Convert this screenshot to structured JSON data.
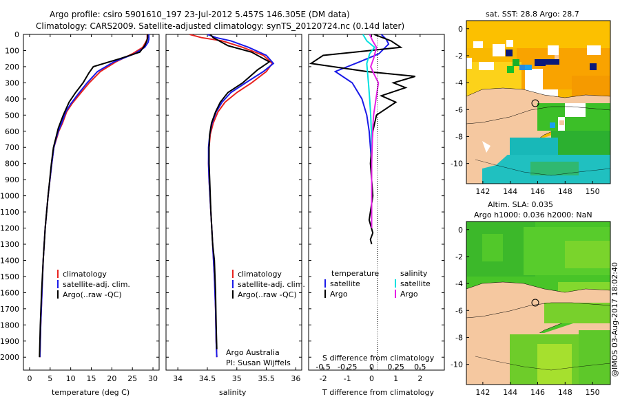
{
  "title": {
    "line1": "Argo profile: csiro 5901610_197 23-Jul-2012 5.457S 146.305E (DM data)",
    "line2": "Climatology: CARS2009. Satellite-adjusted climatology: synTS_20120724.nc (0.14d later)"
  },
  "credit": "@IMOS 03-Aug-2017 18:02:40",
  "legend_profile": [
    "climatology",
    "satellite-adj. clim.",
    "Argo(..raw -QC)"
  ],
  "legend_diff": {
    "temperature_head": "temperature",
    "salinity_head": "salinity",
    "items_t": [
      "satellite",
      "Argo"
    ],
    "items_s": [
      "satellite",
      "Argo"
    ]
  },
  "annotation_salinity": [
    "Argo Australia",
    "PI: Susan Wijffels"
  ],
  "map_top": {
    "title": "sat. SST: 28.8 Argo: 28.7"
  },
  "map_bottom": {
    "title1": "Altim. SLA: 0.035",
    "title2": "Argo h1000: 0.036 h2000: NaN"
  },
  "colors": {
    "climatology": "#e8231f",
    "satellite": "#1a1ae8",
    "argo": "#000000",
    "sat_salinity": "#00e0e0",
    "argo_salinity": "#e61ee6",
    "land": "#f5c8a0"
  },
  "chart_data": [
    {
      "type": "line",
      "name": "temperature",
      "xlabel": "temperature (deg C)",
      "xticks": [
        0,
        5,
        10,
        15,
        20,
        25,
        30
      ],
      "xlim": [
        -1.5,
        31.5
      ],
      "ylim": [
        0,
        2080
      ],
      "yticks": [
        0,
        100,
        200,
        300,
        400,
        500,
        600,
        700,
        800,
        900,
        1000,
        1100,
        1200,
        1300,
        1400,
        1500,
        1600,
        1700,
        1800,
        1900,
        2000
      ],
      "series": [
        {
          "name": "climatology",
          "color": "#e8231f",
          "x": [
            28.6,
            28.6,
            28.2,
            27.5,
            25.0,
            21.0,
            17.2,
            14.5,
            12.2,
            10.3,
            9.0,
            8.0,
            7.1,
            6.5,
            5.9,
            5.4,
            4.5,
            3.8,
            3.3,
            3.0,
            2.7,
            2.5
          ],
          "y": [
            0,
            30,
            50,
            80,
            120,
            170,
            230,
            300,
            370,
            430,
            480,
            550,
            600,
            650,
            700,
            800,
            1000,
            1200,
            1400,
            1600,
            1800,
            2000
          ]
        },
        {
          "name": "satellite-adj. clim.",
          "color": "#1a1ae8",
          "x": [
            29.0,
            29.0,
            28.8,
            28.0,
            25.5,
            20.5,
            16.5,
            14.0,
            11.8,
            10.0,
            8.8,
            7.8,
            7.0,
            6.4,
            5.9,
            5.4,
            4.5,
            3.8,
            3.3,
            3.0,
            2.7,
            2.5
          ],
          "y": [
            0,
            30,
            50,
            80,
            120,
            170,
            230,
            300,
            370,
            430,
            480,
            550,
            600,
            650,
            700,
            800,
            1000,
            1200,
            1400,
            1600,
            1800,
            2000
          ]
        },
        {
          "name": "Argo(..raw -QC)",
          "color": "#000000",
          "x": [
            28.7,
            28.7,
            28.5,
            28.0,
            26.8,
            22.0,
            15.5,
            14.4,
            13.0,
            11.2,
            9.6,
            8.2,
            7.0,
            6.3,
            5.8,
            5.3,
            4.5,
            3.8,
            3.3,
            2.9,
            2.6,
            2.4
          ],
          "y": [
            0,
            20,
            40,
            70,
            110,
            150,
            200,
            240,
            300,
            360,
            420,
            500,
            580,
            650,
            700,
            800,
            1000,
            1200,
            1400,
            1600,
            1800,
            2000
          ]
        }
      ]
    },
    {
      "type": "line",
      "name": "salinity",
      "xlabel": "salinity",
      "xticks": [
        34,
        34.5,
        35,
        35.5,
        36
      ],
      "xlim": [
        33.8,
        36.1
      ],
      "ylim": [
        0,
        2080
      ],
      "series": [
        {
          "name": "climatology",
          "color": "#e8231f",
          "x": [
            34.2,
            34.4,
            34.75,
            35.1,
            35.45,
            35.6,
            35.5,
            35.25,
            35.0,
            34.8,
            34.68,
            34.6,
            34.55,
            34.53,
            34.52,
            34.53,
            34.56,
            34.59,
            34.62,
            34.64,
            34.65,
            34.66
          ],
          "y": [
            0,
            20,
            40,
            80,
            130,
            180,
            230,
            300,
            360,
            420,
            480,
            550,
            620,
            700,
            800,
            900,
            1100,
            1300,
            1500,
            1700,
            1900,
            2000
          ]
        },
        {
          "name": "satellite-adj. clim.",
          "color": "#1a1ae8",
          "x": [
            34.5,
            34.65,
            34.9,
            35.2,
            35.5,
            35.62,
            35.45,
            35.15,
            34.9,
            34.75,
            34.65,
            34.58,
            34.54,
            34.52,
            34.52,
            34.53,
            34.56,
            34.59,
            34.62,
            34.64,
            34.65,
            34.66
          ],
          "y": [
            0,
            20,
            40,
            80,
            130,
            180,
            230,
            300,
            360,
            420,
            480,
            550,
            620,
            700,
            800,
            900,
            1100,
            1300,
            1500,
            1700,
            1900,
            2000
          ]
        },
        {
          "name": "Argo(..raw -QC)",
          "color": "#000000",
          "x": [
            34.55,
            34.6,
            34.7,
            34.85,
            35.25,
            35.55,
            35.35,
            35.1,
            34.85,
            34.72,
            34.64,
            34.57,
            34.54,
            34.53,
            34.53,
            34.54,
            34.56,
            34.59,
            34.62,
            34.64,
            34.65,
            34.66
          ],
          "y": [
            0,
            20,
            40,
            70,
            110,
            170,
            220,
            300,
            360,
            420,
            480,
            550,
            620,
            700,
            800,
            900,
            1100,
            1300,
            1400,
            1600,
            1800,
            1950
          ]
        }
      ]
    },
    {
      "type": "line",
      "name": "difference",
      "xlabel": "T difference from climatology",
      "xlabel_top": "S difference from climatology",
      "xticks": [
        -2,
        -1,
        0,
        1,
        2
      ],
      "xticks_top": [
        -0.5,
        -0.25,
        0,
        0.25,
        0.5
      ],
      "xlim": [
        -2.6,
        3.0
      ],
      "ylim": [
        0,
        2080
      ],
      "series": [
        {
          "name": "temperature satellite",
          "color": "#1a1ae8",
          "x": [
            0.4,
            0.6,
            0.7,
            0.3,
            -0.5,
            -1.5,
            -0.8,
            -0.4,
            -0.2,
            -0.1,
            -0.05,
            0,
            0,
            0,
            0,
            0
          ],
          "y": [
            0,
            30,
            60,
            120,
            170,
            230,
            300,
            400,
            500,
            600,
            700,
            800,
            900,
            1000,
            1100,
            1200
          ]
        },
        {
          "name": "temperature Argo",
          "color": "#000000",
          "x": [
            0.1,
            0.8,
            1.2,
            -2.0,
            -2.5,
            -0.2,
            1.8,
            0.9,
            1.4,
            0.4,
            1.0,
            0.2,
            0.05,
            -0.05,
            0.05,
            -0.1,
            0.05,
            -0.05,
            0
          ],
          "y": [
            0,
            40,
            80,
            130,
            180,
            230,
            260,
            300,
            330,
            380,
            420,
            500,
            600,
            800,
            1000,
            1150,
            1230,
            1270,
            1300
          ]
        },
        {
          "name": "salinity satellite",
          "color": "#00e0e0",
          "x": [
            -0.09,
            -0.05,
            0.03,
            -0.02,
            -0.05,
            -0.04,
            -0.03,
            -0.02,
            -0.01,
            0,
            0
          ],
          "y": [
            0,
            40,
            80,
            120,
            180,
            250,
            320,
            400,
            500,
            650,
            800
          ]
        },
        {
          "name": "salinity Argo",
          "color": "#e61ee6",
          "x": [
            -0.02,
            0.01,
            0.05,
            0.02,
            -0.01,
            0.02,
            0.07,
            0.04,
            0.02,
            0.01,
            0,
            0,
            0
          ],
          "y": [
            0,
            40,
            80,
            150,
            200,
            240,
            300,
            420,
            500,
            600,
            800,
            1000,
            1200
          ]
        }
      ]
    }
  ],
  "maps": {
    "top": {
      "xticks": [
        142,
        144,
        146,
        148,
        150
      ],
      "yticks": [
        0,
        -2,
        -4,
        -6,
        -8,
        -10
      ]
    },
    "bottom": {
      "xticks": [
        142,
        144,
        146,
        148,
        150
      ],
      "yticks": [
        0,
        -2,
        -4,
        -6,
        -8,
        -10
      ]
    }
  }
}
